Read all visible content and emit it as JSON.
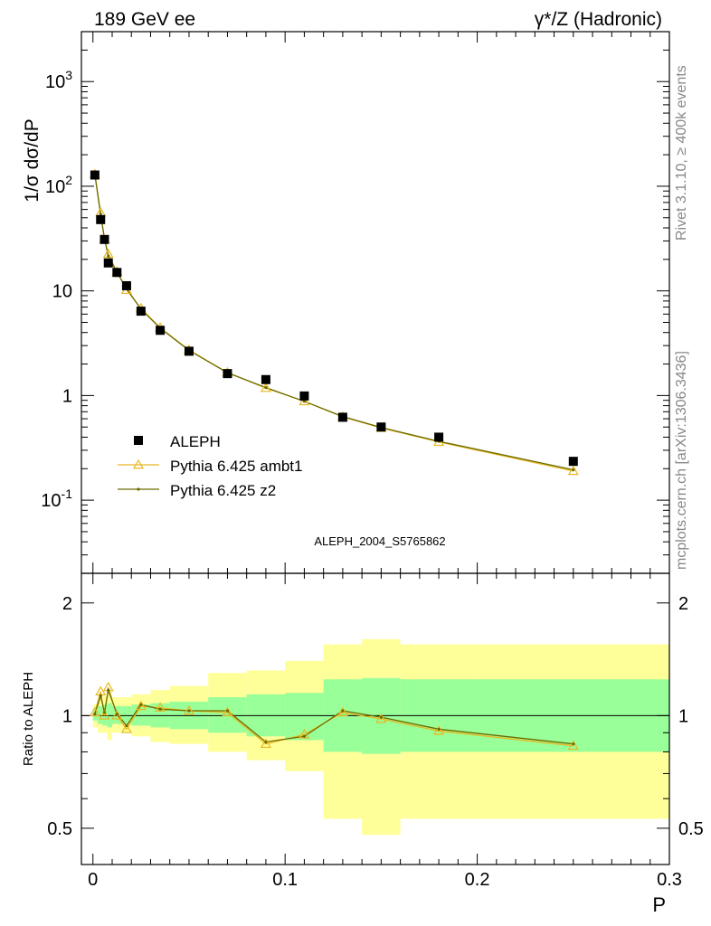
{
  "header": {
    "left": "189 GeV ee",
    "right": "γ*/Z (Hadronic)"
  },
  "side": {
    "events": "Rivet 3.1.10, ≥ 400k events",
    "site": "mcplots.cern.ch [arXiv:1306.3436]"
  },
  "chart_data": [
    {
      "type": "scatter",
      "ylabel": "1/σ  dσ/dP",
      "yscale": "log",
      "xlim": [
        -0.006,
        0.3
      ],
      "ylim": [
        0.02,
        3000
      ],
      "watermark": "ALEPH_2004_S5765862",
      "y_ticks": [
        "10^-1",
        "1",
        "10",
        "10^2",
        "10^3"
      ],
      "legend_position": "lower-left",
      "data": {
        "name": "ALEPH",
        "x": [
          0.001,
          0.004,
          0.006,
          0.008,
          0.0125,
          0.0175,
          0.025,
          0.035,
          0.05,
          0.07,
          0.09,
          0.11,
          0.13,
          0.15,
          0.18,
          0.25
        ],
        "y": [
          128,
          48,
          31,
          18.5,
          15,
          11.2,
          6.4,
          4.2,
          2.65,
          1.62,
          1.42,
          0.99,
          0.62,
          0.5,
          0.4,
          0.235
        ]
      },
      "series": [
        {
          "name": "Pythia 6.425 ambt1",
          "color": "#e8b820",
          "x": [
            0.001,
            0.004,
            0.006,
            0.008,
            0.0125,
            0.0175,
            0.025,
            0.035,
            0.05,
            0.07,
            0.09,
            0.11,
            0.13,
            0.15,
            0.18,
            0.25
          ],
          "y": [
            130,
            56,
            31,
            22.5,
            15.2,
            10.2,
            6.8,
            4.45,
            2.72,
            1.66,
            1.18,
            0.88,
            0.625,
            0.49,
            0.36,
            0.19
          ]
        },
        {
          "name": "Pythia 6.425 z2",
          "color": "#6b6b00",
          "x": [
            0.001,
            0.004,
            0.006,
            0.008,
            0.0125,
            0.0175,
            0.025,
            0.035,
            0.05,
            0.07,
            0.09,
            0.11,
            0.13,
            0.15,
            0.18,
            0.25
          ],
          "y": [
            129,
            54,
            31.5,
            21.5,
            15.1,
            10.5,
            6.7,
            4.4,
            2.7,
            1.65,
            1.19,
            0.88,
            0.63,
            0.495,
            0.365,
            0.195
          ]
        }
      ]
    },
    {
      "type": "line",
      "xlabel": "P",
      "ylabel": "Ratio to ALEPH",
      "yscale": "log",
      "xlim": [
        -0.006,
        0.3
      ],
      "ylim": [
        0.4,
        2.4
      ],
      "x_ticks": [
        "0",
        "0.1",
        "0.2",
        "0.3"
      ],
      "y_ticks": [
        "0.5",
        "1",
        "2"
      ],
      "bands": {
        "edges": [
          0,
          0.0025,
          0.005,
          0.0075,
          0.01,
          0.015,
          0.02,
          0.03,
          0.04,
          0.06,
          0.08,
          0.1,
          0.12,
          0.14,
          0.16,
          0.2,
          0.3
        ],
        "inner_color": "#99ff99",
        "outer_color": "#ffff99",
        "inner_lo": [
          0.97,
          0.95,
          0.94,
          0.93,
          0.95,
          0.95,
          0.94,
          0.93,
          0.92,
          0.9,
          0.88,
          0.86,
          0.8,
          0.79,
          0.8,
          0.8
        ],
        "inner_hi": [
          1.04,
          1.06,
          1.07,
          1.08,
          1.06,
          1.06,
          1.07,
          1.08,
          1.09,
          1.12,
          1.14,
          1.15,
          1.25,
          1.26,
          1.25,
          1.25
        ],
        "outer_lo": [
          0.93,
          0.9,
          0.9,
          0.86,
          0.9,
          0.9,
          0.88,
          0.85,
          0.84,
          0.8,
          0.76,
          0.71,
          0.53,
          0.48,
          0.53,
          0.53
        ],
        "outer_hi": [
          1.07,
          1.11,
          1.13,
          1.16,
          1.12,
          1.12,
          1.14,
          1.17,
          1.2,
          1.3,
          1.32,
          1.4,
          1.55,
          1.6,
          1.55,
          1.55
        ]
      },
      "series": [
        {
          "name": "Pythia 6.425 ambt1",
          "color": "#e8b820",
          "x": [
            0.001,
            0.004,
            0.006,
            0.008,
            0.0125,
            0.0175,
            0.025,
            0.035,
            0.05,
            0.07,
            0.09,
            0.11,
            0.13,
            0.15,
            0.18,
            0.25
          ],
          "y": [
            1.02,
            1.16,
            1.0,
            1.19,
            1.0,
            0.92,
            1.06,
            1.05,
            1.03,
            1.02,
            0.84,
            0.89,
            1.02,
            0.98,
            0.91,
            0.83
          ]
        },
        {
          "name": "Pythia 6.425 z2",
          "color": "#6b6b00",
          "x": [
            0.001,
            0.004,
            0.006,
            0.008,
            0.0125,
            0.0175,
            0.025,
            0.035,
            0.05,
            0.07,
            0.09,
            0.11,
            0.13,
            0.15,
            0.18,
            0.25
          ],
          "y": [
            1.01,
            1.13,
            1.02,
            1.17,
            1.01,
            0.94,
            1.07,
            1.04,
            1.03,
            1.03,
            0.85,
            0.88,
            1.03,
            0.99,
            0.92,
            0.84
          ]
        }
      ]
    }
  ]
}
